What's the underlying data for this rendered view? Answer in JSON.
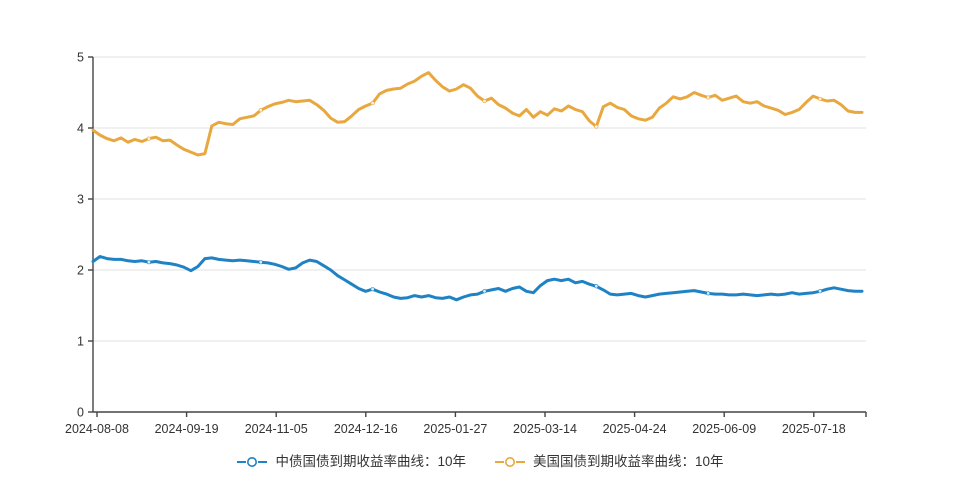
{
  "colors": {
    "china_series": "#1e82c4",
    "us_series": "#e9a83f",
    "axis_line": "#444444",
    "grid_line": "#e2e2e2",
    "tick_label": "#333333",
    "legend_text": "#333333",
    "background": "#ffffff",
    "marker_fill": "#ffffff"
  },
  "chart_data": {
    "type": "line",
    "title": "",
    "xlabel": "",
    "ylabel": "",
    "x_tick_labels": [
      "2024-08-08",
      "2024-09-19",
      "2024-11-05",
      "2024-12-16",
      "2025-01-27",
      "2025-03-14",
      "2025-04-24",
      "2025-06-09",
      "2025-07-18"
    ],
    "y_ticks": [
      0,
      1,
      2,
      3,
      4,
      5
    ],
    "y_tick_labels": [
      "0",
      "1",
      "2",
      "3",
      "4",
      "5"
    ],
    "ylim": [
      0,
      5
    ],
    "grid": true,
    "grid_direction": "horizontal",
    "legend_position": "bottom-center",
    "x_axis_note": "category time axis, points evenly spaced from 2024-08-08 to ~2025-08 beyond last tick",
    "series": [
      {
        "id": "china-bond-10y",
        "name": "中债国债到期收益率曲线：10年",
        "color": "#1e82c4",
        "values": [
          2.12,
          2.19,
          2.16,
          2.15,
          2.15,
          2.13,
          2.12,
          2.13,
          2.11,
          2.12,
          2.1,
          2.09,
          2.07,
          2.04,
          1.99,
          2.05,
          2.16,
          2.17,
          2.15,
          2.14,
          2.13,
          2.14,
          2.13,
          2.12,
          2.11,
          2.1,
          2.08,
          2.05,
          2.01,
          2.03,
          2.1,
          2.14,
          2.12,
          2.06,
          2.0,
          1.92,
          1.86,
          1.8,
          1.74,
          1.7,
          1.73,
          1.69,
          1.66,
          1.62,
          1.6,
          1.61,
          1.64,
          1.62,
          1.64,
          1.61,
          1.6,
          1.62,
          1.58,
          1.62,
          1.65,
          1.66,
          1.7,
          1.72,
          1.74,
          1.7,
          1.74,
          1.76,
          1.7,
          1.68,
          1.78,
          1.85,
          1.87,
          1.85,
          1.87,
          1.82,
          1.84,
          1.8,
          1.77,
          1.72,
          1.66,
          1.65,
          1.66,
          1.67,
          1.64,
          1.62,
          1.64,
          1.66,
          1.67,
          1.68,
          1.69,
          1.7,
          1.71,
          1.69,
          1.67,
          1.66,
          1.66,
          1.65,
          1.65,
          1.66,
          1.65,
          1.64,
          1.65,
          1.66,
          1.65,
          1.66,
          1.68,
          1.66,
          1.67,
          1.68,
          1.7,
          1.73,
          1.75,
          1.73,
          1.71,
          1.7,
          1.7
        ]
      },
      {
        "id": "us-bond-10y",
        "name": "美国国债到期收益率曲线：10年",
        "color": "#e9a83f",
        "values": [
          3.97,
          3.9,
          3.85,
          3.82,
          3.86,
          3.8,
          3.84,
          3.81,
          3.85,
          3.87,
          3.82,
          3.83,
          3.76,
          3.7,
          3.66,
          3.62,
          3.64,
          4.03,
          4.08,
          4.06,
          4.05,
          4.13,
          4.15,
          4.17,
          4.25,
          4.3,
          4.34,
          4.36,
          4.39,
          4.37,
          4.38,
          4.39,
          4.33,
          4.25,
          4.14,
          4.08,
          4.09,
          4.17,
          4.26,
          4.31,
          4.35,
          4.48,
          4.53,
          4.55,
          4.56,
          4.62,
          4.66,
          4.73,
          4.78,
          4.67,
          4.58,
          4.52,
          4.55,
          4.61,
          4.56,
          4.45,
          4.38,
          4.42,
          4.33,
          4.28,
          4.21,
          4.17,
          4.26,
          4.15,
          4.23,
          4.18,
          4.27,
          4.24,
          4.31,
          4.26,
          4.23,
          4.1,
          4.02,
          4.3,
          4.35,
          4.29,
          4.26,
          4.17,
          4.13,
          4.11,
          4.15,
          4.28,
          4.35,
          4.44,
          4.41,
          4.44,
          4.5,
          4.46,
          4.43,
          4.46,
          4.39,
          4.42,
          4.45,
          4.37,
          4.35,
          4.37,
          4.31,
          4.28,
          4.25,
          4.19,
          4.22,
          4.26,
          4.36,
          4.45,
          4.41,
          4.38,
          4.39,
          4.33,
          4.24,
          4.22,
          4.22
        ]
      }
    ]
  },
  "legend": {
    "marker_icon": "line-with-hollow-circle-marker",
    "items": [
      {
        "label": "中债国债到期收益率曲线：10年",
        "color": "#1e82c4"
      },
      {
        "label": "美国国债到期收益率曲线：10年",
        "color": "#e9a83f"
      }
    ]
  }
}
